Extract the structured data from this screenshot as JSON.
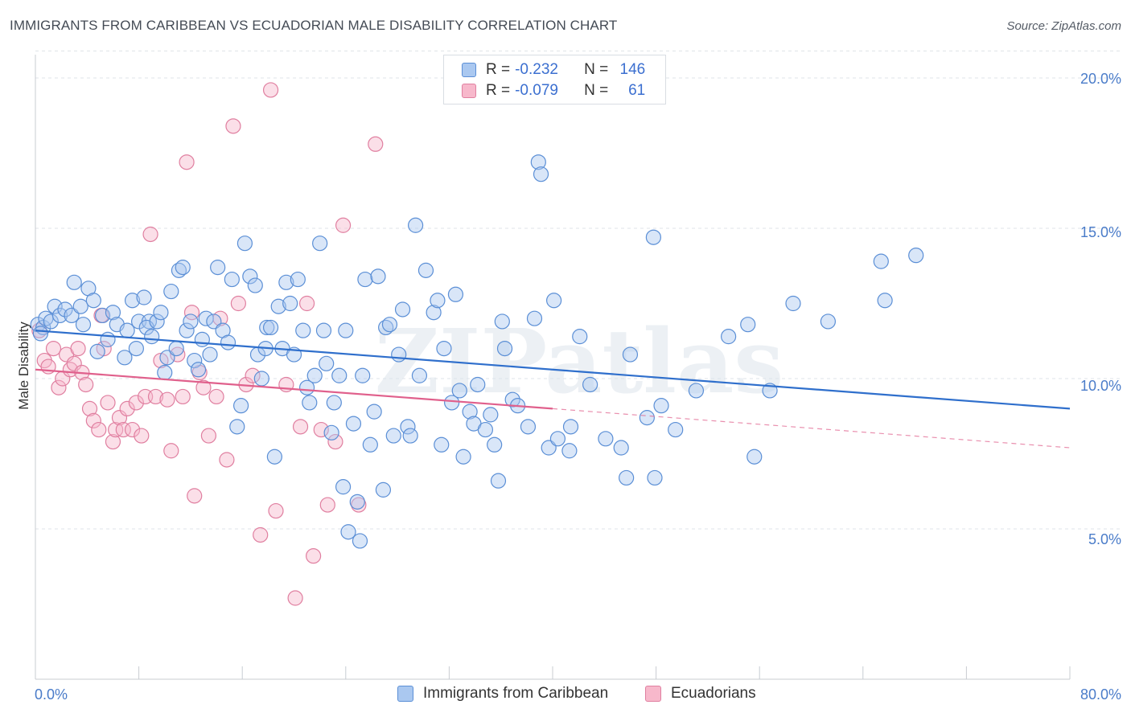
{
  "title": "IMMIGRANTS FROM CARIBBEAN VS ECUADORIAN MALE DISABILITY CORRELATION CHART",
  "source": "Source: ZipAtlas.com",
  "watermark": "ZIPatlas",
  "legend": {
    "rows": [
      {
        "r_label": "R =",
        "r_value": "-0.232",
        "n_label": "N =",
        "n_value": "146"
      },
      {
        "r_label": "R =",
        "r_value": "-0.079",
        "n_label": "N =",
        "n_value": "61"
      }
    ]
  },
  "colors": {
    "blue_fill": "#aac8f0",
    "blue_stroke": "#5b8fd6",
    "blue_line": "#2f6fcc",
    "pink_fill": "#f7b8cb",
    "pink_stroke": "#e07fa0",
    "pink_line": "#e0608c",
    "tick_label": "#4a7cc9",
    "grid": "#dfe3e8"
  },
  "chart_data": {
    "type": "scatter",
    "title": "IMMIGRANTS FROM CARIBBEAN VS ECUADORIAN MALE DISABILITY CORRELATION CHART",
    "xlabel": "",
    "ylabel": "Male Disability",
    "x_tick_labels": [
      "0.0%",
      "80.0%"
    ],
    "y_tick_labels": [
      "5.0%",
      "10.0%",
      "15.0%",
      "20.0%"
    ],
    "y_ticks": [
      5,
      10,
      15,
      20
    ],
    "xlim": [
      0,
      80
    ],
    "ylim": [
      0,
      20.9
    ],
    "grid": "horizontal dashed",
    "legend_placement": "bottom",
    "series": [
      {
        "name": "Immigrants from Caribbean",
        "color": "#aac8f0",
        "trend": {
          "x": [
            0,
            80
          ],
          "y": [
            11.6,
            9.0
          ],
          "dashed_from": null
        },
        "points": [
          [
            0.2,
            11.8
          ],
          [
            0.6,
            11.7
          ],
          [
            0.8,
            12.0
          ],
          [
            1.2,
            11.9
          ],
          [
            1.5,
            12.4
          ],
          [
            1.9,
            12.1
          ],
          [
            2.3,
            12.3
          ],
          [
            2.8,
            12.1
          ],
          [
            3.0,
            13.2
          ],
          [
            3.5,
            12.4
          ],
          [
            3.7,
            11.8
          ],
          [
            4.1,
            13.0
          ],
          [
            4.5,
            12.6
          ],
          [
            4.8,
            10.9
          ],
          [
            5.2,
            12.1
          ],
          [
            5.6,
            11.3
          ],
          [
            6.0,
            12.2
          ],
          [
            6.3,
            11.8
          ],
          [
            6.9,
            10.7
          ],
          [
            7.1,
            11.6
          ],
          [
            7.5,
            12.6
          ],
          [
            7.8,
            11.0
          ],
          [
            8.0,
            11.9
          ],
          [
            8.4,
            12.7
          ],
          [
            8.8,
            11.9
          ],
          [
            8.6,
            11.7
          ],
          [
            9.0,
            11.4
          ],
          [
            9.4,
            11.9
          ],
          [
            9.7,
            12.2
          ],
          [
            10.0,
            10.2
          ],
          [
            10.2,
            10.7
          ],
          [
            10.5,
            12.9
          ],
          [
            10.9,
            11.0
          ],
          [
            11.1,
            13.6
          ],
          [
            11.4,
            13.7
          ],
          [
            11.7,
            11.6
          ],
          [
            12.0,
            11.9
          ],
          [
            12.3,
            10.6
          ],
          [
            12.6,
            10.3
          ],
          [
            12.9,
            11.3
          ],
          [
            13.2,
            12.0
          ],
          [
            13.5,
            10.8
          ],
          [
            13.8,
            11.9
          ],
          [
            14.1,
            13.7
          ],
          [
            14.5,
            11.6
          ],
          [
            14.9,
            11.2
          ],
          [
            15.2,
            13.3
          ],
          [
            15.6,
            8.4
          ],
          [
            15.9,
            9.1
          ],
          [
            16.2,
            14.5
          ],
          [
            16.6,
            13.4
          ],
          [
            17.0,
            13.1
          ],
          [
            17.2,
            10.8
          ],
          [
            17.5,
            10.0
          ],
          [
            17.8,
            11.0
          ],
          [
            17.9,
            11.7
          ],
          [
            18.2,
            11.7
          ],
          [
            18.5,
            7.4
          ],
          [
            18.8,
            12.4
          ],
          [
            19.1,
            11.0
          ],
          [
            19.4,
            13.2
          ],
          [
            19.7,
            12.5
          ],
          [
            20.0,
            10.8
          ],
          [
            20.3,
            13.3
          ],
          [
            20.7,
            11.6
          ],
          [
            21.0,
            9.7
          ],
          [
            21.2,
            9.2
          ],
          [
            21.6,
            10.1
          ],
          [
            22.0,
            14.5
          ],
          [
            22.3,
            11.6
          ],
          [
            22.5,
            10.5
          ],
          [
            22.9,
            8.2
          ],
          [
            23.1,
            9.2
          ],
          [
            23.5,
            10.1
          ],
          [
            23.8,
            6.4
          ],
          [
            24.0,
            11.6
          ],
          [
            24.2,
            4.9
          ],
          [
            24.6,
            8.5
          ],
          [
            24.9,
            5.9
          ],
          [
            25.1,
            4.6
          ],
          [
            25.3,
            10.1
          ],
          [
            25.5,
            13.3
          ],
          [
            25.9,
            7.8
          ],
          [
            26.2,
            8.9
          ],
          [
            26.5,
            13.4
          ],
          [
            26.9,
            6.3
          ],
          [
            27.1,
            11.7
          ],
          [
            27.4,
            11.8
          ],
          [
            27.7,
            8.1
          ],
          [
            28.1,
            10.8
          ],
          [
            28.4,
            12.3
          ],
          [
            28.8,
            8.4
          ],
          [
            29.0,
            8.1
          ],
          [
            29.4,
            15.1
          ],
          [
            29.7,
            10.1
          ],
          [
            30.2,
            13.6
          ],
          [
            30.8,
            12.2
          ],
          [
            31.1,
            12.6
          ],
          [
            31.4,
            7.8
          ],
          [
            31.6,
            11.0
          ],
          [
            32.2,
            9.2
          ],
          [
            32.5,
            12.8
          ],
          [
            32.8,
            9.6
          ],
          [
            33.1,
            7.4
          ],
          [
            33.6,
            8.9
          ],
          [
            33.9,
            8.5
          ],
          [
            34.2,
            9.8
          ],
          [
            34.8,
            8.3
          ],
          [
            35.2,
            8.8
          ],
          [
            35.5,
            7.8
          ],
          [
            35.8,
            6.6
          ],
          [
            36.1,
            11.9
          ],
          [
            36.3,
            11.0
          ],
          [
            36.9,
            9.3
          ],
          [
            37.3,
            9.1
          ],
          [
            38.1,
            8.4
          ],
          [
            38.6,
            12.0
          ],
          [
            38.9,
            17.2
          ],
          [
            39.1,
            16.8
          ],
          [
            39.7,
            7.7
          ],
          [
            40.1,
            12.6
          ],
          [
            40.4,
            8.0
          ],
          [
            41.3,
            7.6
          ],
          [
            41.4,
            8.4
          ],
          [
            42.1,
            11.4
          ],
          [
            42.9,
            9.8
          ],
          [
            44.1,
            8.0
          ],
          [
            45.3,
            7.7
          ],
          [
            45.7,
            6.7
          ],
          [
            46.0,
            10.8
          ],
          [
            47.3,
            8.7
          ],
          [
            47.8,
            14.7
          ],
          [
            47.9,
            6.7
          ],
          [
            48.4,
            9.1
          ],
          [
            49.5,
            8.3
          ],
          [
            51.1,
            9.6
          ],
          [
            53.6,
            11.4
          ],
          [
            55.1,
            11.8
          ],
          [
            55.6,
            7.4
          ],
          [
            56.8,
            9.6
          ],
          [
            58.6,
            12.5
          ],
          [
            61.3,
            11.9
          ],
          [
            65.4,
            13.9
          ],
          [
            65.7,
            12.6
          ],
          [
            68.1,
            14.1
          ],
          [
            0.4,
            11.5
          ]
        ]
      },
      {
        "name": "Ecuadorians",
        "color": "#f7b8cb",
        "trend": {
          "x": [
            0,
            80
          ],
          "y": [
            10.3,
            7.7
          ],
          "dashed_from": 40
        },
        "points": [
          [
            0.3,
            11.6
          ],
          [
            0.7,
            10.6
          ],
          [
            1.0,
            10.4
          ],
          [
            1.4,
            11.0
          ],
          [
            1.8,
            9.7
          ],
          [
            2.1,
            10.0
          ],
          [
            2.4,
            10.8
          ],
          [
            2.7,
            10.3
          ],
          [
            3.0,
            10.5
          ],
          [
            3.3,
            11.0
          ],
          [
            3.6,
            10.2
          ],
          [
            3.9,
            9.8
          ],
          [
            4.2,
            9.0
          ],
          [
            4.5,
            8.6
          ],
          [
            4.9,
            8.3
          ],
          [
            5.1,
            12.1
          ],
          [
            5.3,
            11.0
          ],
          [
            5.6,
            9.2
          ],
          [
            6.0,
            7.9
          ],
          [
            6.2,
            8.3
          ],
          [
            6.5,
            8.7
          ],
          [
            6.8,
            8.3
          ],
          [
            7.1,
            9.0
          ],
          [
            7.5,
            8.3
          ],
          [
            7.8,
            9.2
          ],
          [
            8.2,
            8.1
          ],
          [
            8.5,
            9.4
          ],
          [
            8.9,
            14.8
          ],
          [
            9.3,
            9.4
          ],
          [
            9.7,
            10.6
          ],
          [
            10.2,
            9.3
          ],
          [
            10.5,
            7.6
          ],
          [
            11.0,
            10.8
          ],
          [
            11.4,
            9.4
          ],
          [
            11.7,
            17.2
          ],
          [
            12.1,
            12.2
          ],
          [
            12.3,
            6.1
          ],
          [
            12.7,
            10.2
          ],
          [
            13.0,
            9.7
          ],
          [
            13.4,
            8.1
          ],
          [
            14.0,
            9.4
          ],
          [
            14.3,
            12.0
          ],
          [
            14.8,
            7.3
          ],
          [
            15.3,
            18.4
          ],
          [
            15.7,
            12.5
          ],
          [
            16.3,
            9.8
          ],
          [
            16.8,
            10.1
          ],
          [
            17.4,
            4.8
          ],
          [
            18.2,
            19.6
          ],
          [
            18.6,
            5.6
          ],
          [
            19.4,
            9.8
          ],
          [
            20.1,
            2.7
          ],
          [
            20.5,
            8.4
          ],
          [
            21.0,
            12.5
          ],
          [
            21.5,
            4.1
          ],
          [
            22.1,
            8.3
          ],
          [
            22.6,
            5.8
          ],
          [
            23.2,
            7.9
          ],
          [
            23.8,
            15.1
          ],
          [
            25.0,
            5.8
          ],
          [
            26.3,
            17.8
          ]
        ]
      }
    ]
  },
  "bottom_legend": {
    "items": [
      {
        "label": "Immigrants from Caribbean"
      },
      {
        "label": "Ecuadorians"
      }
    ]
  }
}
